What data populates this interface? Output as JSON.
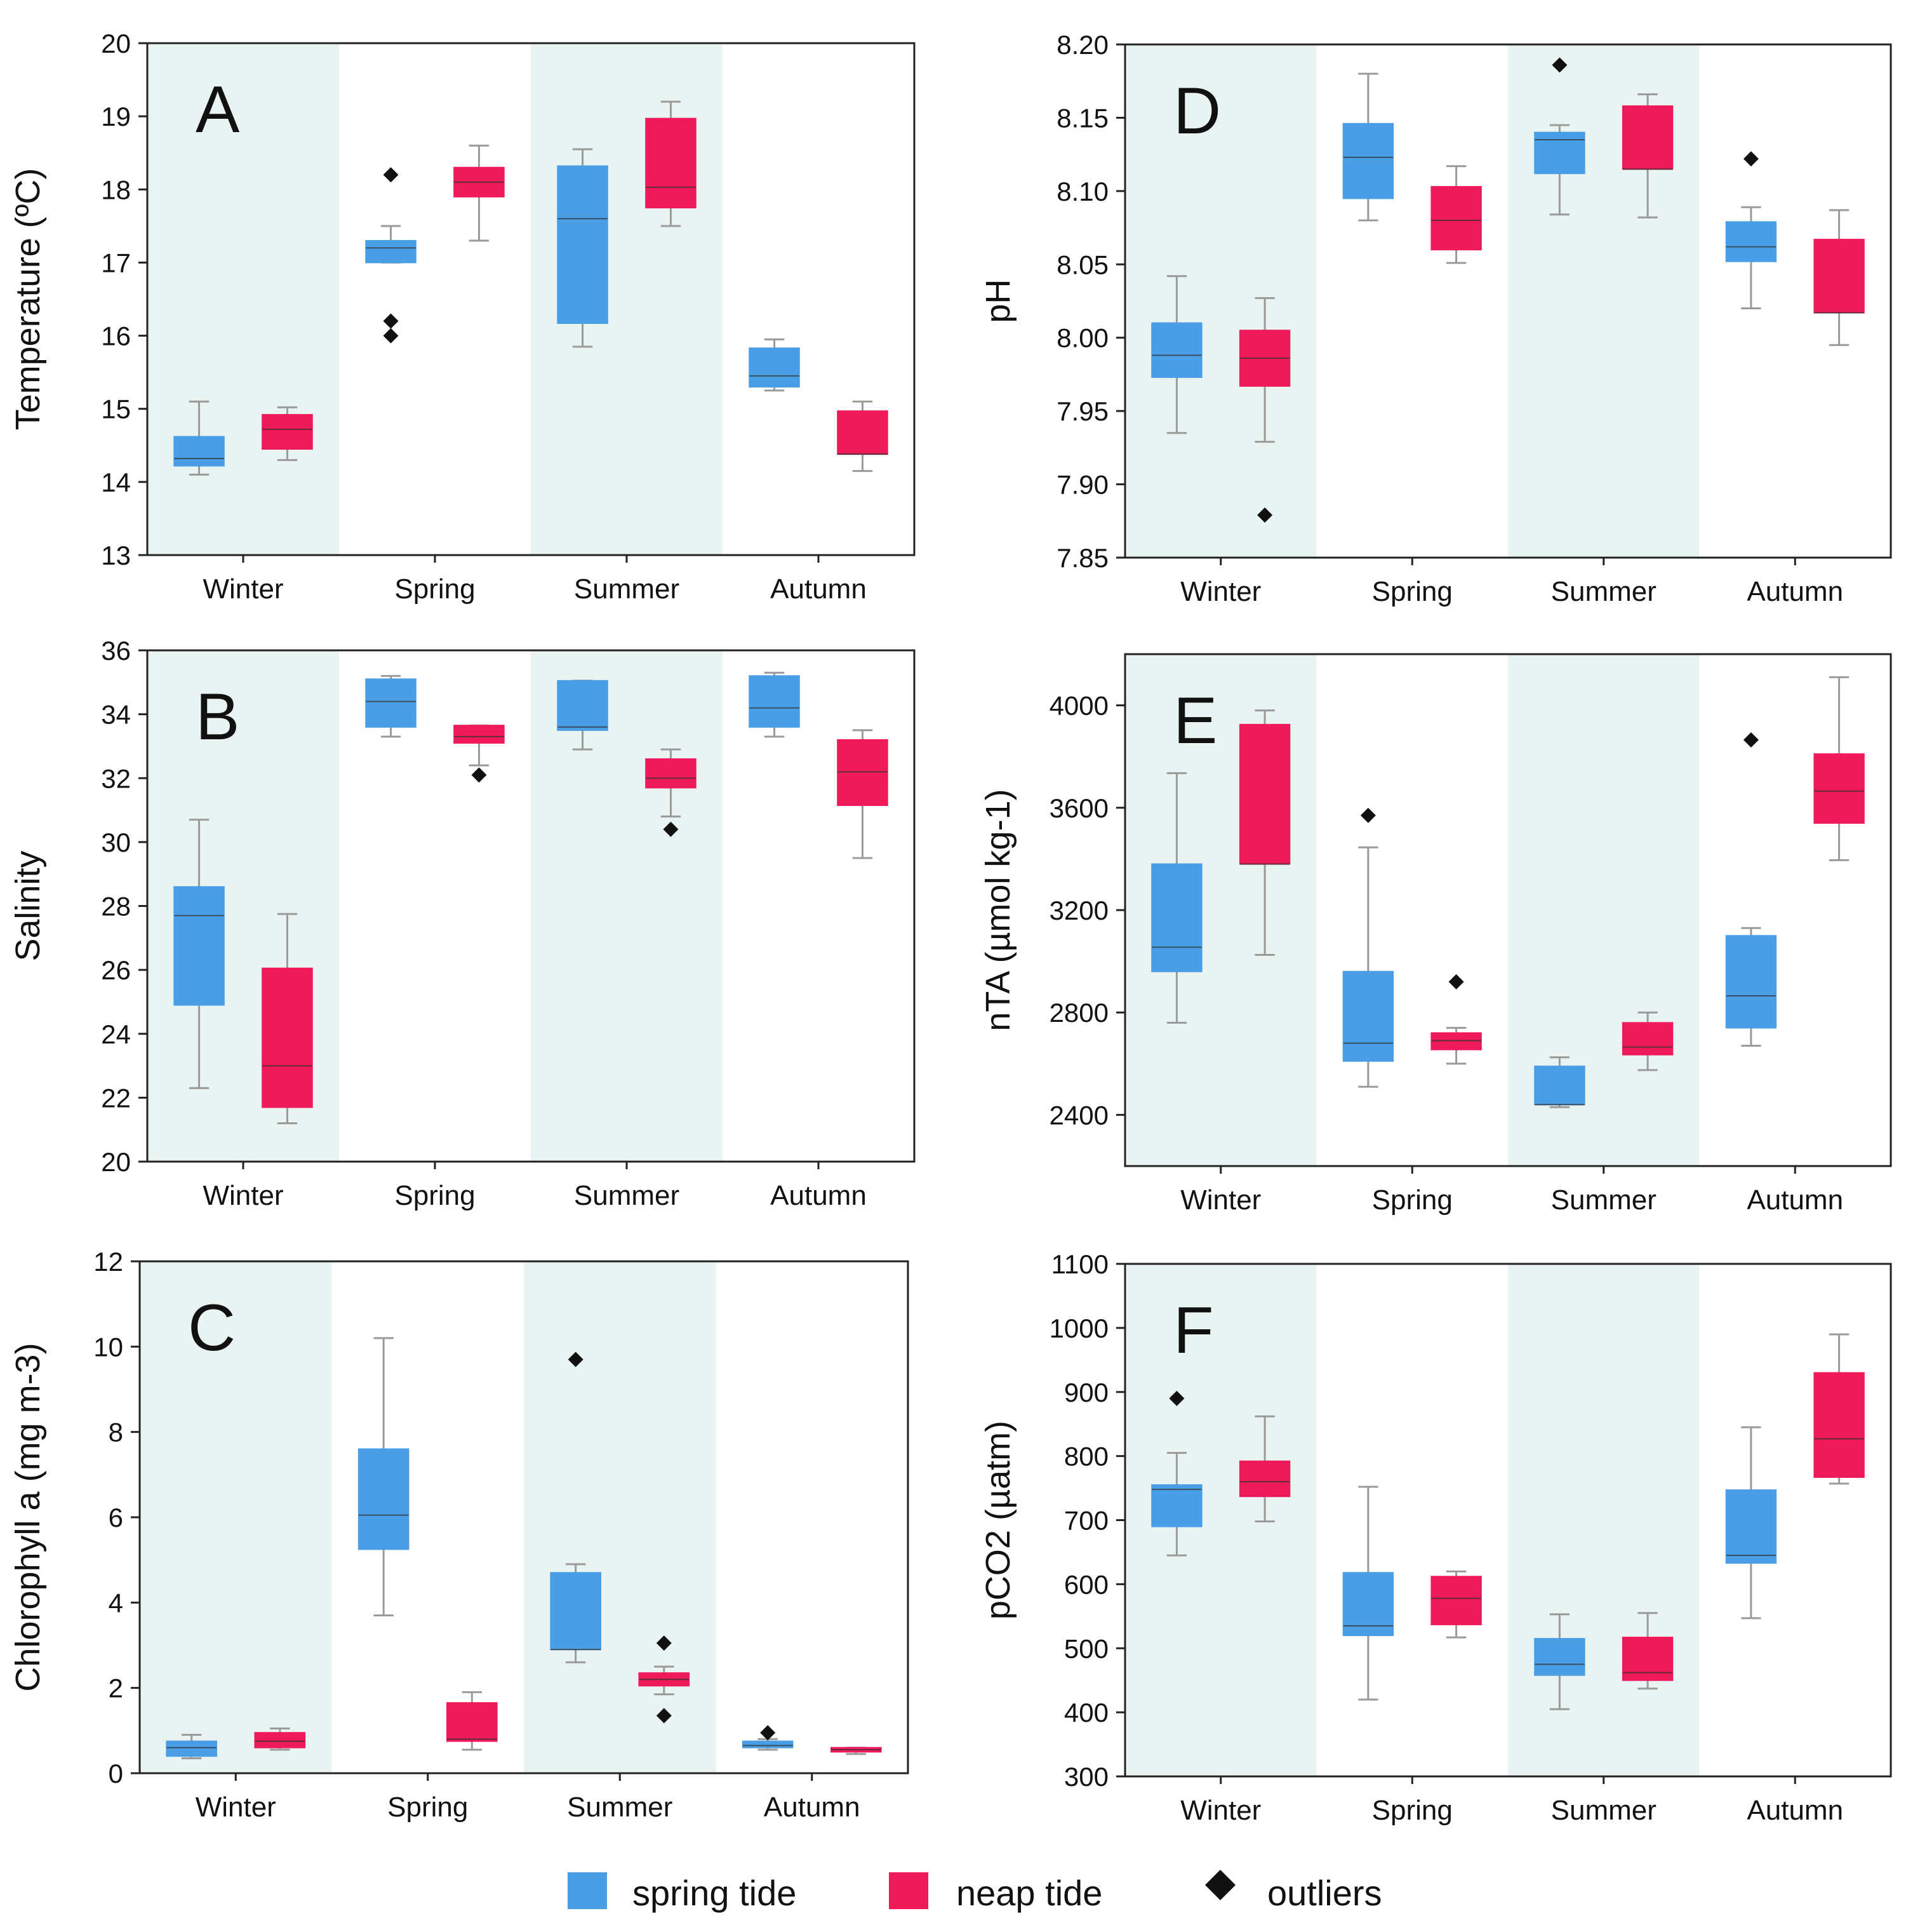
{
  "colors": {
    "spring_tide": "#4a9ee6",
    "neap_tide": "#f0195a",
    "outlier": "#111111",
    "season_shade": "#e8f3f2",
    "whisker": "#9a9a9a"
  },
  "chart_data": [
    {
      "panel": "A",
      "type": "box",
      "ylabel": "Temperature (ºC)",
      "ylim": [
        13,
        20
      ],
      "yticks": [
        13,
        14,
        15,
        16,
        17,
        18,
        19,
        20
      ],
      "categories": [
        "Winter",
        "Spring",
        "Summer",
        "Autumn"
      ],
      "shaded": [
        "Winter",
        "Summer"
      ],
      "series": [
        {
          "name": "spring tide",
          "boxes": [
            {
              "min": 14.1,
              "q1": 14.22,
              "median": 14.32,
              "q3": 14.62,
              "max": 15.1,
              "outliers": []
            },
            {
              "min": 17.0,
              "q1": 17.0,
              "median": 17.2,
              "q3": 17.3,
              "max": 17.5,
              "outliers": [
                18.2,
                16.2,
                16.0
              ]
            },
            {
              "min": 15.85,
              "q1": 16.17,
              "median": 17.6,
              "q3": 18.32,
              "max": 18.55,
              "outliers": []
            },
            {
              "min": 15.25,
              "q1": 15.3,
              "median": 15.45,
              "q3": 15.83,
              "max": 15.95,
              "outliers": []
            }
          ]
        },
        {
          "name": "neap tide",
          "boxes": [
            {
              "min": 14.3,
              "q1": 14.45,
              "median": 14.72,
              "q3": 14.92,
              "max": 15.02,
              "outliers": []
            },
            {
              "min": 17.3,
              "q1": 17.9,
              "median": 18.1,
              "q3": 18.3,
              "max": 18.6,
              "outliers": []
            },
            {
              "min": 17.5,
              "q1": 17.75,
              "median": 18.03,
              "q3": 18.97,
              "max": 19.2,
              "outliers": []
            },
            {
              "min": 14.15,
              "q1": 14.38,
              "median": 14.38,
              "q3": 14.97,
              "max": 15.1,
              "outliers": []
            }
          ]
        }
      ]
    },
    {
      "panel": "B",
      "type": "box",
      "ylabel": "Salinity",
      "ylim": [
        20,
        36
      ],
      "yticks": [
        20,
        22,
        24,
        26,
        28,
        30,
        32,
        34,
        36
      ],
      "categories": [
        "Winter",
        "Spring",
        "Summer",
        "Autumn"
      ],
      "shaded": [
        "Winter",
        "Summer"
      ],
      "series": [
        {
          "name": "spring tide",
          "boxes": [
            {
              "min": 22.3,
              "q1": 24.9,
              "median": 27.7,
              "q3": 28.6,
              "max": 30.7,
              "outliers": []
            },
            {
              "min": 33.3,
              "q1": 33.6,
              "median": 34.4,
              "q3": 35.1,
              "max": 35.2,
              "outliers": []
            },
            {
              "min": 32.9,
              "q1": 33.5,
              "median": 33.6,
              "q3": 35.05,
              "max": 35.05,
              "outliers": []
            },
            {
              "min": 33.3,
              "q1": 33.6,
              "median": 34.2,
              "q3": 35.2,
              "max": 35.3,
              "outliers": []
            }
          ]
        },
        {
          "name": "neap tide",
          "boxes": [
            {
              "min": 21.2,
              "q1": 21.7,
              "median": 23.0,
              "q3": 26.05,
              "max": 27.75,
              "outliers": []
            },
            {
              "min": 32.4,
              "q1": 33.1,
              "median": 33.3,
              "q3": 33.65,
              "max": 33.65,
              "outliers": [
                32.1
              ]
            },
            {
              "min": 30.8,
              "q1": 31.7,
              "median": 32.0,
              "q3": 32.6,
              "max": 32.9,
              "outliers": [
                30.4
              ]
            },
            {
              "min": 29.5,
              "q1": 31.15,
              "median": 32.2,
              "q3": 33.2,
              "max": 33.5,
              "outliers": []
            }
          ]
        }
      ]
    },
    {
      "panel": "C",
      "type": "box",
      "ylabel": "Chlorophyll a (mg m-3)",
      "ylim": [
        0,
        12
      ],
      "yticks": [
        0,
        2,
        4,
        6,
        8,
        10,
        12
      ],
      "categories": [
        "Winter",
        "Spring",
        "Summer",
        "Autumn"
      ],
      "shaded": [
        "Winter",
        "Summer"
      ],
      "series": [
        {
          "name": "spring tide",
          "boxes": [
            {
              "min": 0.35,
              "q1": 0.4,
              "median": 0.6,
              "q3": 0.75,
              "max": 0.9,
              "outliers": []
            },
            {
              "min": 3.7,
              "q1": 5.25,
              "median": 6.05,
              "q3": 7.6,
              "max": 10.2,
              "outliers": []
            },
            {
              "min": 2.6,
              "q1": 2.9,
              "median": 2.9,
              "q3": 4.7,
              "max": 4.9,
              "outliers": [
                9.7
              ]
            },
            {
              "min": 0.55,
              "q1": 0.6,
              "median": 0.65,
              "q3": 0.75,
              "max": 0.8,
              "outliers": [
                0.95
              ]
            }
          ]
        },
        {
          "name": "neap tide",
          "boxes": [
            {
              "min": 0.55,
              "q1": 0.6,
              "median": 0.75,
              "q3": 0.95,
              "max": 1.05,
              "outliers": []
            },
            {
              "min": 0.55,
              "q1": 0.75,
              "median": 0.8,
              "q3": 1.65,
              "max": 1.9,
              "outliers": []
            },
            {
              "min": 1.85,
              "q1": 2.05,
              "median": 2.2,
              "q3": 2.35,
              "max": 2.5,
              "outliers": [
                3.05,
                1.35
              ]
            },
            {
              "min": 0.45,
              "q1": 0.5,
              "median": 0.55,
              "q3": 0.6,
              "max": 0.6,
              "outliers": []
            }
          ]
        }
      ]
    },
    {
      "panel": "D",
      "type": "box",
      "ylabel": "pH",
      "ylim": [
        7.85,
        8.2
      ],
      "yticks": [
        "7.85",
        "7.90",
        "7.95",
        "8.00",
        "8.05",
        "8.10",
        "8.15",
        "8.20"
      ],
      "categories": [
        "Winter",
        "Spring",
        "Summer",
        "Autumn"
      ],
      "shaded": [
        "Winter",
        "Summer"
      ],
      "series": [
        {
          "name": "spring tide",
          "boxes": [
            {
              "min": 7.935,
              "q1": 7.973,
              "median": 7.988,
              "q3": 8.01,
              "max": 8.042,
              "outliers": []
            },
            {
              "min": 8.08,
              "q1": 8.095,
              "median": 8.123,
              "q3": 8.146,
              "max": 8.18,
              "outliers": []
            },
            {
              "min": 8.084,
              "q1": 8.112,
              "median": 8.135,
              "q3": 8.14,
              "max": 8.145,
              "outliers": [
                8.186
              ]
            },
            {
              "min": 8.02,
              "q1": 8.052,
              "median": 8.062,
              "q3": 8.079,
              "max": 8.089,
              "outliers": [
                8.122
              ]
            }
          ]
        },
        {
          "name": "neap tide",
          "boxes": [
            {
              "min": 7.929,
              "q1": 7.967,
              "median": 7.986,
              "q3": 8.005,
              "max": 8.027,
              "outliers": [
                7.879
              ]
            },
            {
              "min": 8.051,
              "q1": 8.06,
              "median": 8.08,
              "q3": 8.103,
              "max": 8.117,
              "outliers": []
            },
            {
              "min": 8.082,
              "q1": 8.115,
              "median": 8.115,
              "q3": 8.158,
              "max": 8.166,
              "outliers": []
            },
            {
              "min": 7.995,
              "q1": 8.017,
              "median": 8.017,
              "q3": 8.067,
              "max": 8.087,
              "outliers": []
            }
          ]
        }
      ]
    },
    {
      "panel": "E",
      "type": "box",
      "ylabel": "nTA (µmol kg-1)",
      "ylim": [
        2200,
        4200
      ],
      "yticks": [
        2400,
        2800,
        3200,
        3600,
        4000
      ],
      "categories": [
        "Winter",
        "Spring",
        "Summer",
        "Autumn"
      ],
      "shaded": [
        "Winter",
        "Summer"
      ],
      "series": [
        {
          "name": "spring tide",
          "boxes": [
            {
              "min": 2760,
              "q1": 2960,
              "median": 3055,
              "q3": 3380,
              "max": 3735,
              "outliers": []
            },
            {
              "min": 2510,
              "q1": 2610,
              "median": 2680,
              "q3": 2960,
              "max": 3445,
              "outliers": [
                3570
              ]
            },
            {
              "min": 2430,
              "q1": 2440,
              "median": 2440,
              "q3": 2590,
              "max": 2625,
              "outliers": []
            },
            {
              "min": 2670,
              "q1": 2740,
              "median": 2865,
              "q3": 3100,
              "max": 3130,
              "outliers": [
                3865
              ]
            }
          ]
        },
        {
          "name": "neap tide",
          "boxes": [
            {
              "min": 3025,
              "q1": 3380,
              "median": 3380,
              "q3": 3925,
              "max": 3980,
              "outliers": []
            },
            {
              "min": 2600,
              "q1": 2655,
              "median": 2690,
              "q3": 2720,
              "max": 2740,
              "outliers": [
                2920
              ]
            },
            {
              "min": 2575,
              "q1": 2635,
              "median": 2665,
              "q3": 2760,
              "max": 2800,
              "outliers": []
            },
            {
              "min": 3395,
              "q1": 3540,
              "median": 3665,
              "q3": 3810,
              "max": 4110,
              "outliers": []
            }
          ]
        }
      ]
    },
    {
      "panel": "F",
      "type": "box",
      "ylabel": "pCO2 (µatm)",
      "ylim": [
        300,
        1100
      ],
      "yticks": [
        300,
        400,
        500,
        600,
        700,
        800,
        900,
        1000,
        1100
      ],
      "categories": [
        "Winter",
        "Spring",
        "Summer",
        "Autumn"
      ],
      "shaded": [
        "Winter",
        "Summer"
      ],
      "series": [
        {
          "name": "spring tide",
          "boxes": [
            {
              "min": 645,
              "q1": 690,
              "median": 748,
              "q3": 755,
              "max": 805,
              "outliers": [
                890
              ]
            },
            {
              "min": 420,
              "q1": 520,
              "median": 535,
              "q3": 618,
              "max": 752,
              "outliers": []
            },
            {
              "min": 405,
              "q1": 458,
              "median": 475,
              "q3": 515,
              "max": 553,
              "outliers": []
            },
            {
              "min": 547,
              "q1": 633,
              "median": 645,
              "q3": 747,
              "max": 845,
              "outliers": []
            }
          ]
        },
        {
          "name": "neap tide",
          "boxes": [
            {
              "min": 698,
              "q1": 737,
              "median": 760,
              "q3": 792,
              "max": 862,
              "outliers": []
            },
            {
              "min": 517,
              "q1": 537,
              "median": 578,
              "q3": 612,
              "max": 620,
              "outliers": []
            },
            {
              "min": 437,
              "q1": 450,
              "median": 462,
              "q3": 517,
              "max": 555,
              "outliers": []
            },
            {
              "min": 757,
              "q1": 767,
              "median": 827,
              "q3": 930,
              "max": 990,
              "outliers": []
            }
          ]
        }
      ]
    }
  ],
  "legend": {
    "spring_label": "spring tide",
    "neap_label": "neap tide",
    "outlier_label": "outliers"
  }
}
